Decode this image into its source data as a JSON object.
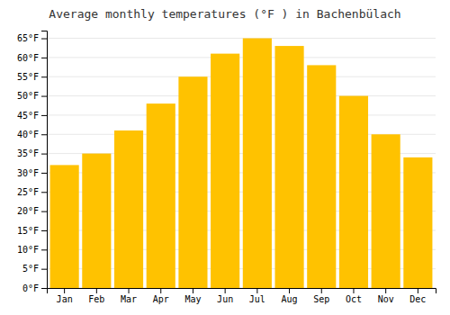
{
  "chart_data": {
    "type": "bar",
    "title": "Average monthly temperatures (°F ) in Bachenbülach",
    "categories": [
      "Jan",
      "Feb",
      "Mar",
      "Apr",
      "May",
      "Jun",
      "Jul",
      "Aug",
      "Sep",
      "Oct",
      "Nov",
      "Dec"
    ],
    "values": [
      32,
      35,
      41,
      48,
      55,
      61,
      65,
      63,
      58,
      50,
      40,
      34
    ],
    "color": "#FFC200",
    "ylim": [
      0,
      67
    ],
    "yticks": [
      {
        "value": 0,
        "label": "0°F"
      },
      {
        "value": 5,
        "label": "5°F"
      },
      {
        "value": 10,
        "label": "10°F"
      },
      {
        "value": 15,
        "label": "15°F"
      },
      {
        "value": 20,
        "label": "20°F"
      },
      {
        "value": 25,
        "label": "25°F"
      },
      {
        "value": 30,
        "label": "30°F"
      },
      {
        "value": 35,
        "label": "35°F"
      },
      {
        "value": 40,
        "label": "40°F"
      },
      {
        "value": 45,
        "label": "45°F"
      },
      {
        "value": 50,
        "label": "50°F"
      },
      {
        "value": 55,
        "label": "55°F"
      },
      {
        "value": 60,
        "label": "60°F"
      },
      {
        "value": 65,
        "label": "65°F"
      }
    ],
    "grid": true
  }
}
